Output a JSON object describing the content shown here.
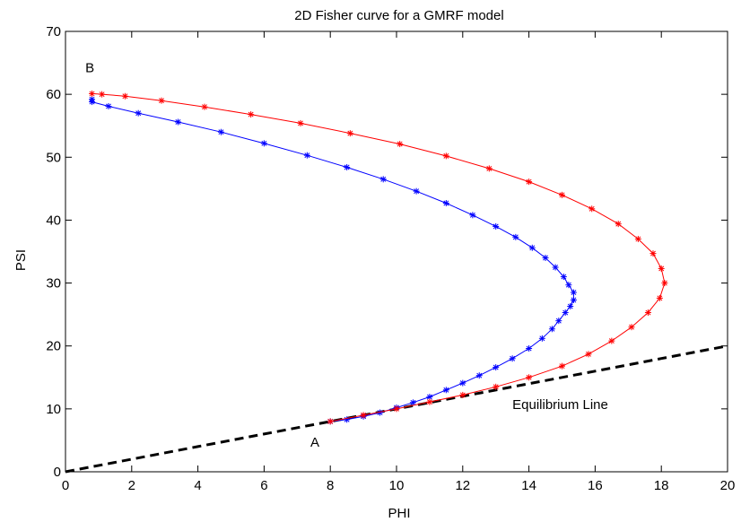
{
  "chart_data": {
    "type": "line",
    "title": "2D Fisher curve for a GMRF model",
    "xlabel": "PHI",
    "ylabel": "PSI",
    "xlim": [
      0,
      20
    ],
    "ylim": [
      0,
      70
    ],
    "xticks": [
      "0",
      "2",
      "4",
      "6",
      "8",
      "10",
      "12",
      "14",
      "16",
      "18",
      "20"
    ],
    "yticks": [
      "0",
      "10",
      "20",
      "30",
      "40",
      "50",
      "60",
      "70"
    ],
    "grid": false,
    "legend": "none",
    "annotations": [
      {
        "text": "A",
        "x": 7.4,
        "y": 4.0
      },
      {
        "text": "B",
        "x": 0.6,
        "y": 63.5
      },
      {
        "text": "Equilibrium Line",
        "x": 13.5,
        "y": 10.0
      }
    ],
    "series": [
      {
        "style": "dashed",
        "color": "#000000",
        "x": [
          0,
          2,
          4,
          6,
          8,
          10,
          12,
          14,
          16,
          18,
          20
        ],
        "y": [
          0,
          2,
          4,
          6,
          8,
          10,
          12,
          14,
          16,
          18,
          20
        ]
      },
      {
        "style": "solid-star",
        "color": "#0000ff",
        "x": [
          8.0,
          8.5,
          9.0,
          9.5,
          10.0,
          10.5,
          11.0,
          11.5,
          12.0,
          12.5,
          13.0,
          13.5,
          14.0,
          14.4,
          14.7,
          14.9,
          15.1,
          15.25,
          15.35,
          15.35,
          15.2,
          15.05,
          14.8,
          14.5,
          14.1,
          13.6,
          13.0,
          12.3,
          11.5,
          10.6,
          9.6,
          8.5,
          7.3,
          6.0,
          4.7,
          3.4,
          2.2,
          1.3,
          0.8,
          0.8
        ],
        "y": [
          8.0,
          8.3,
          8.8,
          9.4,
          10.2,
          11.0,
          11.9,
          13.0,
          14.1,
          15.3,
          16.6,
          18.0,
          19.6,
          21.2,
          22.7,
          24.0,
          25.3,
          26.3,
          27.3,
          28.5,
          29.7,
          31.0,
          32.5,
          34.0,
          35.6,
          37.3,
          39.0,
          40.8,
          42.7,
          44.6,
          46.5,
          48.4,
          50.3,
          52.2,
          54.0,
          55.6,
          57.0,
          58.1,
          58.8,
          59.2
        ]
      },
      {
        "style": "solid-star",
        "color": "#ff0000",
        "x": [
          8.0,
          9.0,
          10.0,
          11.0,
          12.0,
          13.0,
          14.0,
          15.0,
          15.8,
          16.5,
          17.1,
          17.6,
          17.95,
          18.1,
          18.0,
          17.75,
          17.3,
          16.7,
          15.9,
          15.0,
          14.0,
          12.8,
          11.5,
          10.1,
          8.6,
          7.1,
          5.6,
          4.2,
          2.9,
          1.8,
          1.1,
          0.8
        ],
        "y": [
          8.0,
          9.0,
          10.0,
          11.1,
          12.2,
          13.5,
          15.0,
          16.8,
          18.7,
          20.8,
          23.0,
          25.3,
          27.6,
          30.0,
          32.3,
          34.7,
          37.0,
          39.4,
          41.8,
          44.0,
          46.1,
          48.2,
          50.2,
          52.1,
          53.8,
          55.4,
          56.8,
          58.0,
          59.0,
          59.7,
          60.0,
          60.1
        ]
      }
    ]
  }
}
